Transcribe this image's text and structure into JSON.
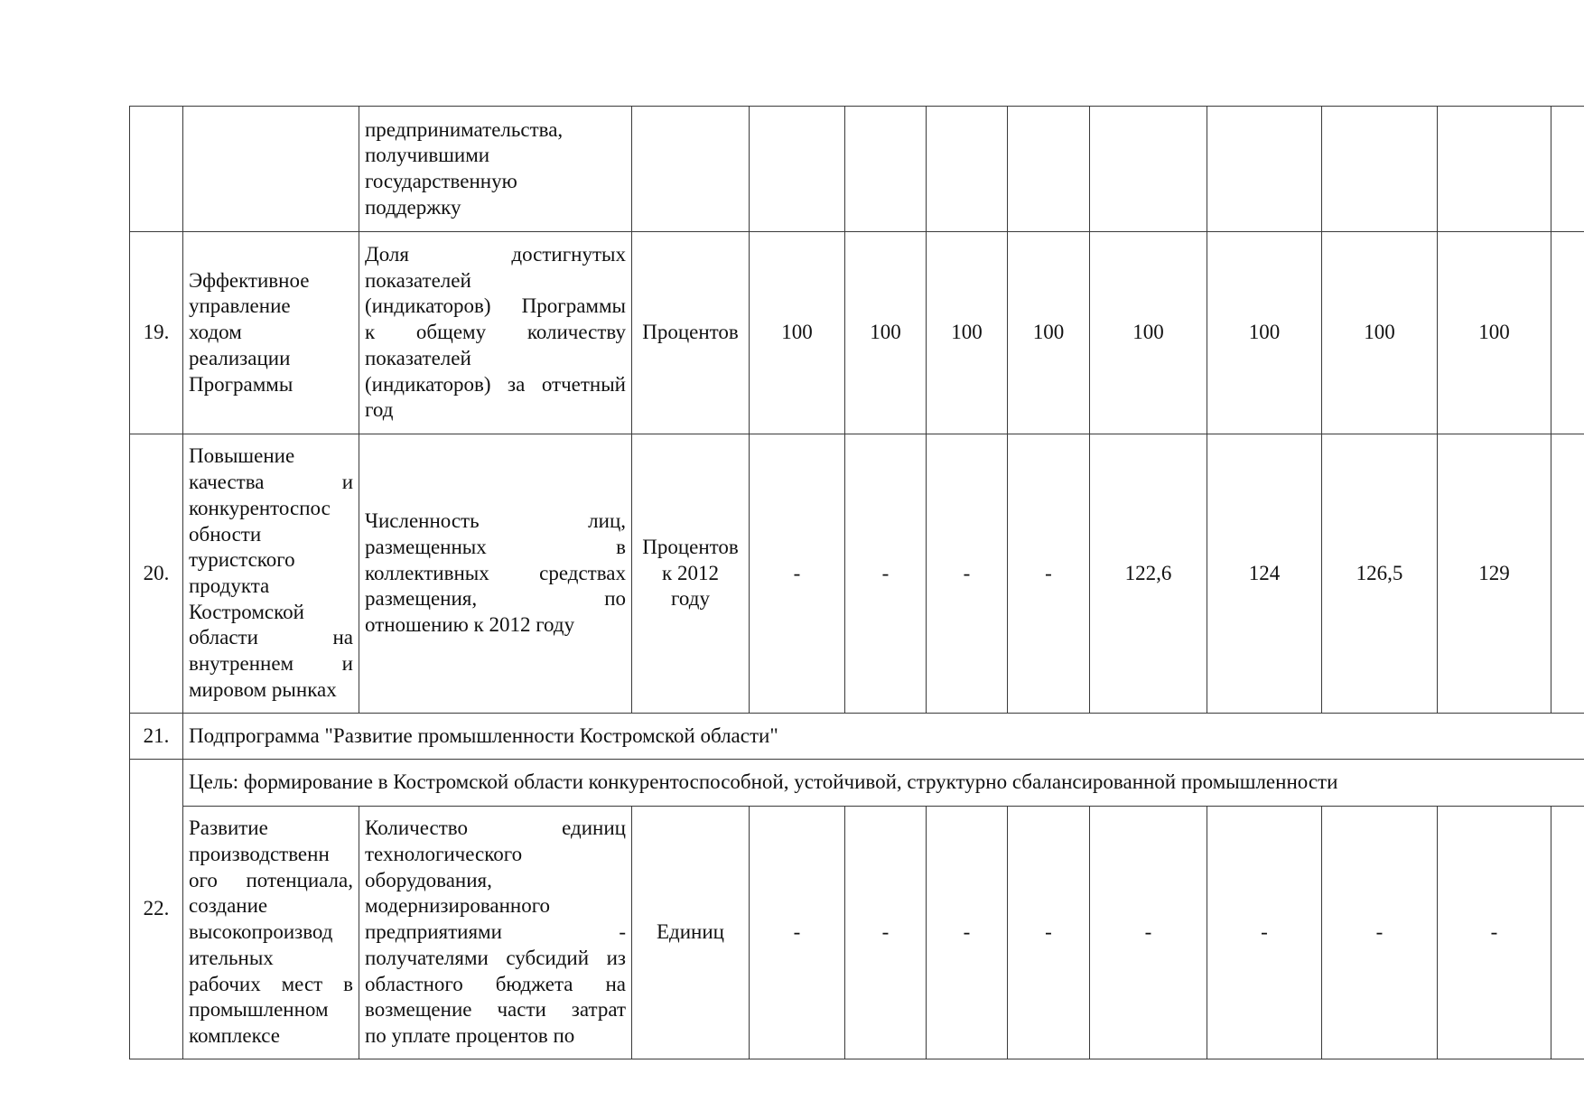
{
  "table": {
    "rows": [
      {
        "type": "data",
        "number": "",
        "task": [],
        "indicator": [
          "предпринимательства,",
          "получившими",
          "государственную",
          "поддержку"
        ],
        "unit": [],
        "values": [
          "",
          "",
          "",
          "",
          "",
          "",
          "",
          "",
          ""
        ]
      },
      {
        "type": "data",
        "number": "19.",
        "task": [
          "Эффективное",
          "управление",
          "ходом",
          "реализации",
          "Программы"
        ],
        "indicator": [
          "Доля достигнутых",
          "показателей",
          "(индикаторов) Программы",
          "к общему количеству",
          "показателей",
          "(индикаторов) за отчетный",
          "год"
        ],
        "unit": [
          "Процентов"
        ],
        "values": [
          "100",
          "100",
          "100",
          "100",
          "100",
          "100",
          "100",
          "100",
          ""
        ]
      },
      {
        "type": "data",
        "number": "20.",
        "task": [
          "Повышение",
          "качества и",
          "конкурентоспос",
          "обности",
          "туристского",
          "продукта",
          "Костромской",
          "области на",
          "внутреннем и",
          "мировом рынках"
        ],
        "indicator": [
          "Численность лиц,",
          "размещенных в",
          "коллективных средствах",
          "размещения, по",
          "отношению к 2012 году"
        ],
        "unit": [
          "Процентов",
          "к 2012",
          "году"
        ],
        "values": [
          "-",
          "-",
          "-",
          "-",
          "122,6",
          "124",
          "126,5",
          "129",
          ""
        ]
      },
      {
        "type": "span",
        "number": "21.",
        "text": "Подпрограмма \"Развитие промышленности Костромской области\""
      },
      {
        "type": "goal",
        "number": "22.",
        "text": "Цель: формирование в Костромской области конкурентоспособной, устойчивой, структурно сбалансированной промышленности"
      },
      {
        "type": "data",
        "number": null,
        "task": [
          "Развитие",
          "производственн",
          "ого потенциала,",
          "создание",
          "высокопроизвод",
          "ительных",
          "рабочих мест в",
          "промышленном",
          "комплексе"
        ],
        "indicator": [
          "Количество единиц",
          "технологического",
          "оборудования,",
          "модернизированного",
          "предприятиями -",
          "получателями субсидий из",
          "областного бюджета на",
          "возмещение части затрат",
          "по уплате процентов по"
        ],
        "unit": [
          "Единиц"
        ],
        "values": [
          "-",
          "-",
          "-",
          "-",
          "-",
          "-",
          "-",
          "-",
          ""
        ]
      }
    ]
  }
}
